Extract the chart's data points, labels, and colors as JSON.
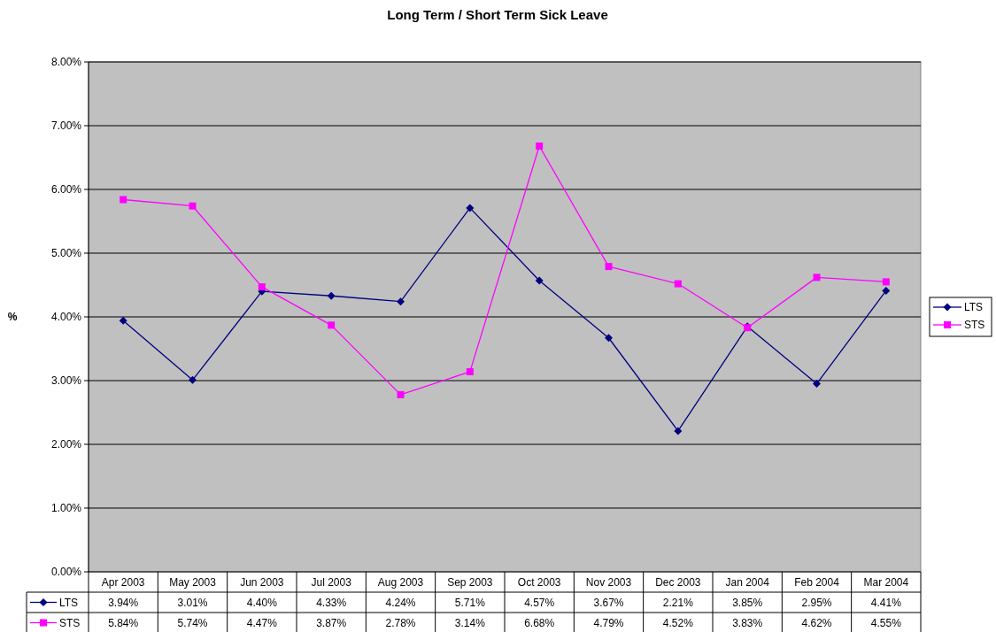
{
  "chart_data": {
    "type": "line",
    "title": "Long Term / Short Term Sick Leave",
    "ylabel": "%",
    "categories": [
      "Apr 2003",
      "May 2003",
      "Jun 2003",
      "Jul 2003",
      "Aug 2003",
      "Sep 2003",
      "Oct 2003",
      "Nov 2003",
      "Dec 2003",
      "Jan 2004",
      "Feb 2004",
      "Mar 2004"
    ],
    "series": [
      {
        "name": "LTS",
        "color": "#000080",
        "marker": "diamond",
        "values": [
          3.94,
          3.01,
          4.4,
          4.33,
          4.24,
          5.71,
          4.57,
          3.67,
          2.21,
          3.85,
          2.95,
          4.41
        ],
        "value_labels": [
          "3.94%",
          "3.01%",
          "4.40%",
          "4.33%",
          "4.24%",
          "5.71%",
          "4.57%",
          "3.67%",
          "2.21%",
          "3.85%",
          "2.95%",
          "4.41%"
        ]
      },
      {
        "name": "STS",
        "color": "#ff00ff",
        "marker": "square",
        "values": [
          5.84,
          5.74,
          4.47,
          3.87,
          2.78,
          3.14,
          6.68,
          4.79,
          4.52,
          3.83,
          4.62,
          4.55
        ],
        "value_labels": [
          "5.84%",
          "5.74%",
          "4.47%",
          "3.87%",
          "2.78%",
          "3.14%",
          "6.68%",
          "4.79%",
          "4.52%",
          "3.83%",
          "4.62%",
          "4.55%"
        ]
      }
    ],
    "ylim": [
      0,
      8
    ],
    "yticks": [
      {
        "value": 0,
        "label": "0.00%"
      },
      {
        "value": 1,
        "label": "1.00%"
      },
      {
        "value": 2,
        "label": "2.00%"
      },
      {
        "value": 3,
        "label": "3.00%"
      },
      {
        "value": 4,
        "label": "4.00%"
      },
      {
        "value": 5,
        "label": "5.00%"
      },
      {
        "value": 6,
        "label": "6.00%"
      },
      {
        "value": 7,
        "label": "7.00%"
      },
      {
        "value": 8,
        "label": "8.00%"
      }
    ],
    "grid": "y",
    "legend": "right",
    "line_style": "solid"
  }
}
